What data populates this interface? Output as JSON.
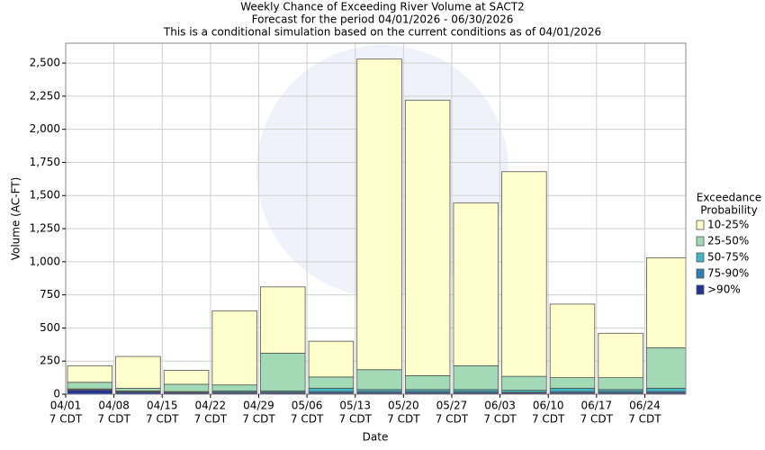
{
  "chart_data": {
    "type": "bar",
    "stacked": true,
    "title": "Weekly Chance of Exceeding River Volume at SACT2",
    "subtitle": "Forecast for the period 04/01/2026 - 06/30/2026",
    "note": "This is a conditional simulation based on the current conditions as of 04/01/2026",
    "x_label": "Date",
    "y_label": "Volume (AC-FT)",
    "legend_title": [
      "Exceedance",
      "Probability"
    ],
    "legend_position": "right",
    "grid": true,
    "xlim": [
      0,
      12.85
    ],
    "xticks": [
      {
        "value": 0,
        "label": [
          "04/01",
          "7 CDT"
        ]
      },
      {
        "value": 1,
        "label": [
          "04/08",
          "7 CDT"
        ]
      },
      {
        "value": 2,
        "label": [
          "04/15",
          "7 CDT"
        ]
      },
      {
        "value": 3,
        "label": [
          "04/22",
          "7 CDT"
        ]
      },
      {
        "value": 4,
        "label": [
          "04/29",
          "7 CDT"
        ]
      },
      {
        "value": 5,
        "label": [
          "05/06",
          "7 CDT"
        ]
      },
      {
        "value": 6,
        "label": [
          "05/13",
          "7 CDT"
        ]
      },
      {
        "value": 7,
        "label": [
          "05/20",
          "7 CDT"
        ]
      },
      {
        "value": 8,
        "label": [
          "05/27",
          "7 CDT"
        ]
      },
      {
        "value": 9,
        "label": [
          "06/03",
          "7 CDT"
        ]
      },
      {
        "value": 10,
        "label": [
          "06/10",
          "7 CDT"
        ]
      },
      {
        "value": 11,
        "label": [
          "06/17",
          "7 CDT"
        ]
      },
      {
        "value": 12,
        "label": [
          "06/24",
          "7 CDT"
        ]
      }
    ],
    "x": [
      0,
      1,
      2,
      3,
      4,
      5,
      6,
      7,
      8,
      9,
      10,
      11,
      12
    ],
    "ylim": [
      0,
      2650
    ],
    "yticks": [
      0,
      250,
      500,
      750,
      {
        "value": 1000,
        "label": "1,000"
      },
      {
        "value": 1250,
        "label": "1,250"
      },
      {
        "value": 1500,
        "label": "1,500"
      },
      {
        "value": 1750,
        "label": "1,750"
      },
      {
        "value": 2000,
        "label": "2,000"
      },
      {
        "value": 2250,
        "label": "2,250"
      },
      {
        "value": 2500,
        "label": "2,500"
      }
    ],
    "series": [
      {
        "name": ">90%",
        "color": "#253494",
        "values": [
          30,
          15,
          10,
          10,
          10,
          10,
          10,
          10,
          10,
          10,
          10,
          10,
          10
        ]
      },
      {
        "name": "75-90%",
        "color": "#2c7fb8",
        "values": [
          5,
          5,
          5,
          5,
          5,
          10,
          10,
          10,
          10,
          5,
          10,
          10,
          10
        ]
      },
      {
        "name": "50-75%",
        "color": "#41b6c4",
        "values": [
          5,
          5,
          5,
          10,
          10,
          25,
          15,
          15,
          15,
          15,
          25,
          15,
          25
        ]
      },
      {
        "name": "25-50%",
        "color": "#a1dab4",
        "values": [
          50,
          20,
          55,
          45,
          285,
          85,
          150,
          105,
          180,
          105,
          80,
          90,
          305
        ]
      },
      {
        "name": "10-25%",
        "color": "#ffffcc",
        "values": [
          125,
          240,
          105,
          560,
          500,
          270,
          2345,
          2080,
          1230,
          1545,
          555,
          335,
          680
        ]
      }
    ]
  }
}
